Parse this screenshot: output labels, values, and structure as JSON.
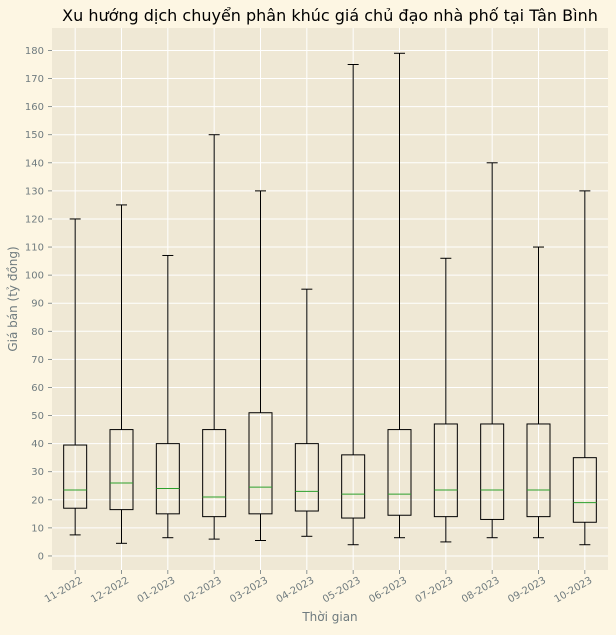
{
  "colors": {
    "figure_background": "#fdf6e3",
    "plot_background": "#efe8d5",
    "grid": "#ffffff",
    "box": "#000000",
    "median": "#2ca02c",
    "axis_text": "#6f7b7f",
    "title": "#000000"
  },
  "chart_data": {
    "type": "box",
    "title": "Xu hướng dịch chuyển phân khúc giá chủ đạo nhà phố tại Tân Bình",
    "xlabel": "Thời gian",
    "ylabel": "Giá bán (tỷ đồng)",
    "ylim": [
      -5,
      188
    ],
    "yticks": [
      0,
      10,
      20,
      30,
      40,
      50,
      60,
      70,
      80,
      90,
      100,
      110,
      120,
      130,
      140,
      150,
      160,
      170,
      180
    ],
    "grid": true,
    "legend": "none",
    "categories": [
      "11-2022",
      "12-2022",
      "01-2023",
      "02-2023",
      "03-2023",
      "04-2023",
      "05-2023",
      "06-2023",
      "07-2023",
      "08-2023",
      "09-2023",
      "10-2023"
    ],
    "boxes": [
      {
        "whisker_low": 7.5,
        "q1": 17,
        "median": 23.5,
        "q3": 39.5,
        "whisker_high": 120
      },
      {
        "whisker_low": 4.5,
        "q1": 16.5,
        "median": 26,
        "q3": 45,
        "whisker_high": 125
      },
      {
        "whisker_low": 6.5,
        "q1": 15,
        "median": 24,
        "q3": 40,
        "whisker_high": 107
      },
      {
        "whisker_low": 6,
        "q1": 14,
        "median": 21,
        "q3": 45,
        "whisker_high": 150
      },
      {
        "whisker_low": 5.5,
        "q1": 15,
        "median": 24.5,
        "q3": 51,
        "whisker_high": 130
      },
      {
        "whisker_low": 7,
        "q1": 16,
        "median": 23,
        "q3": 40,
        "whisker_high": 95
      },
      {
        "whisker_low": 4,
        "q1": 13.5,
        "median": 22,
        "q3": 36,
        "whisker_high": 175
      },
      {
        "whisker_low": 6.5,
        "q1": 14.5,
        "median": 22,
        "q3": 45,
        "whisker_high": 179
      },
      {
        "whisker_low": 5,
        "q1": 14,
        "median": 23.5,
        "q3": 47,
        "whisker_high": 106
      },
      {
        "whisker_low": 6.5,
        "q1": 13,
        "median": 23.5,
        "q3": 47,
        "whisker_high": 140
      },
      {
        "whisker_low": 6.5,
        "q1": 14,
        "median": 23.5,
        "q3": 47,
        "whisker_high": 110
      },
      {
        "whisker_low": 4,
        "q1": 12,
        "median": 19,
        "q3": 35,
        "whisker_high": 130
      }
    ]
  }
}
